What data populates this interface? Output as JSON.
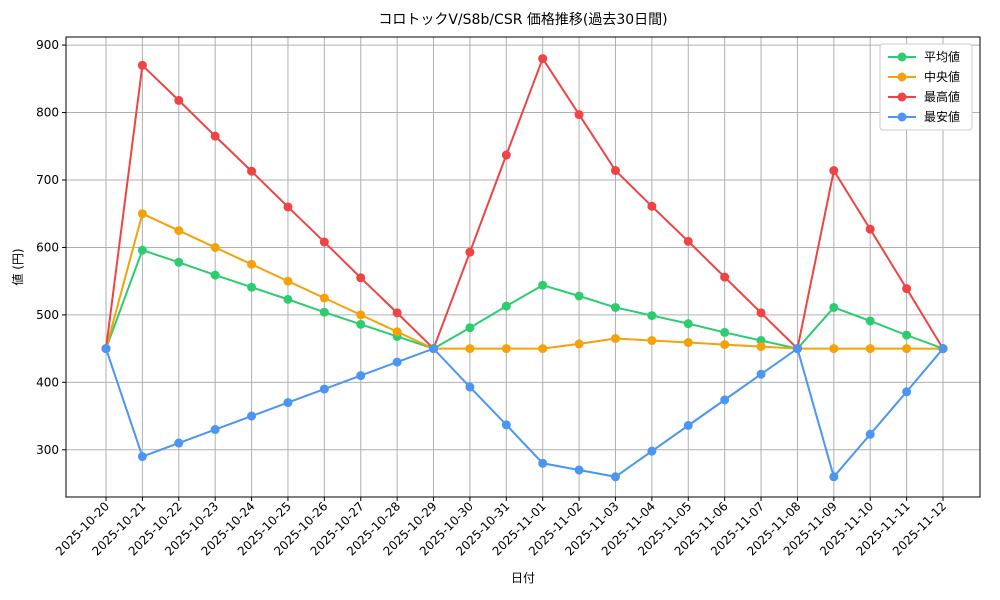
{
  "chart_data": {
    "type": "line",
    "title": "コロトックV/S8b/CSR 価格推移(過去30日間)",
    "x_label": "日付",
    "y_label": "値 (円)",
    "categories": [
      "2025-10-20",
      "2025-10-21",
      "2025-10-22",
      "2025-10-23",
      "2025-10-24",
      "2025-10-25",
      "2025-10-26",
      "2025-10-27",
      "2025-10-28",
      "2025-10-29",
      "2025-10-30",
      "2025-10-31",
      "2025-11-01",
      "2025-11-02",
      "2025-11-03",
      "2025-11-04",
      "2025-11-05",
      "2025-11-06",
      "2025-11-07",
      "2025-11-08",
      "2025-11-09",
      "2025-11-10",
      "2025-11-11",
      "2025-11-12"
    ],
    "series": [
      {
        "name": "平均値",
        "color": "#2ecc71",
        "values": [
          450,
          596,
          578,
          559,
          541,
          523,
          504,
          486,
          468,
          450,
          481,
          513,
          544,
          528,
          511,
          499,
          487,
          474,
          462,
          450,
          511,
          491,
          470,
          450
        ]
      },
      {
        "name": "中央値",
        "color": "#f5a20a",
        "values": [
          450,
          650,
          625,
          600,
          575,
          550,
          525,
          500,
          475,
          450,
          450,
          450,
          450,
          457,
          465,
          462,
          459,
          456,
          453,
          450,
          450,
          450,
          450,
          450
        ]
      },
      {
        "name": "最高値",
        "color": "#ef4444",
        "values": [
          450,
          870,
          818,
          765,
          713,
          660,
          608,
          555,
          503,
          450,
          593,
          737,
          880,
          797,
          714,
          661,
          609,
          556,
          503,
          450,
          714,
          627,
          539,
          450
        ]
      },
      {
        "name": "最安値",
        "color": "#4a96f2",
        "values": [
          450,
          290,
          310,
          330,
          350,
          370,
          390,
          410,
          430,
          450,
          393,
          337,
          280,
          270,
          260,
          298,
          336,
          374,
          412,
          450,
          260,
          323,
          386,
          450
        ]
      }
    ],
    "ylim": [
      230,
      912
    ],
    "yticks": [
      300,
      400,
      500,
      600,
      700,
      800,
      900
    ],
    "grid": true,
    "legend": "upper right"
  }
}
